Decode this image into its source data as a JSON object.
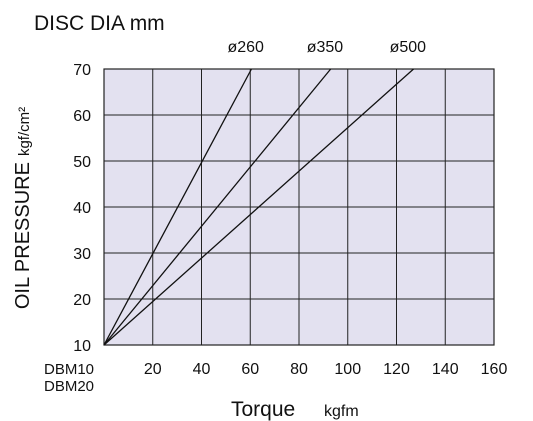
{
  "chart_data": {
    "type": "line",
    "title": "DISC DIA mm",
    "xlabel": "Torque",
    "xlabel_unit": "kgfm",
    "ylabel": "OIL PRESSURE",
    "ylabel_unit": "kgf/cm²",
    "xlim": [
      0,
      160
    ],
    "ylim": [
      10,
      70
    ],
    "x_ticks": [
      "20",
      "40",
      "60",
      "80",
      "100",
      "120",
      "140",
      "160"
    ],
    "y_ticks": [
      "10",
      "20",
      "30",
      "40",
      "50",
      "60",
      "70"
    ],
    "x_origin_labels": [
      "DBM10",
      "DBM20"
    ],
    "grid": true,
    "series": [
      {
        "name": "ø260",
        "x": [
          0,
          60.5
        ],
        "y": [
          10,
          70
        ]
      },
      {
        "name": "ø350",
        "x": [
          0,
          93
        ],
        "y": [
          10,
          70
        ]
      },
      {
        "name": "ø500",
        "x": [
          0,
          127
        ],
        "y": [
          10,
          70
        ]
      }
    ]
  }
}
